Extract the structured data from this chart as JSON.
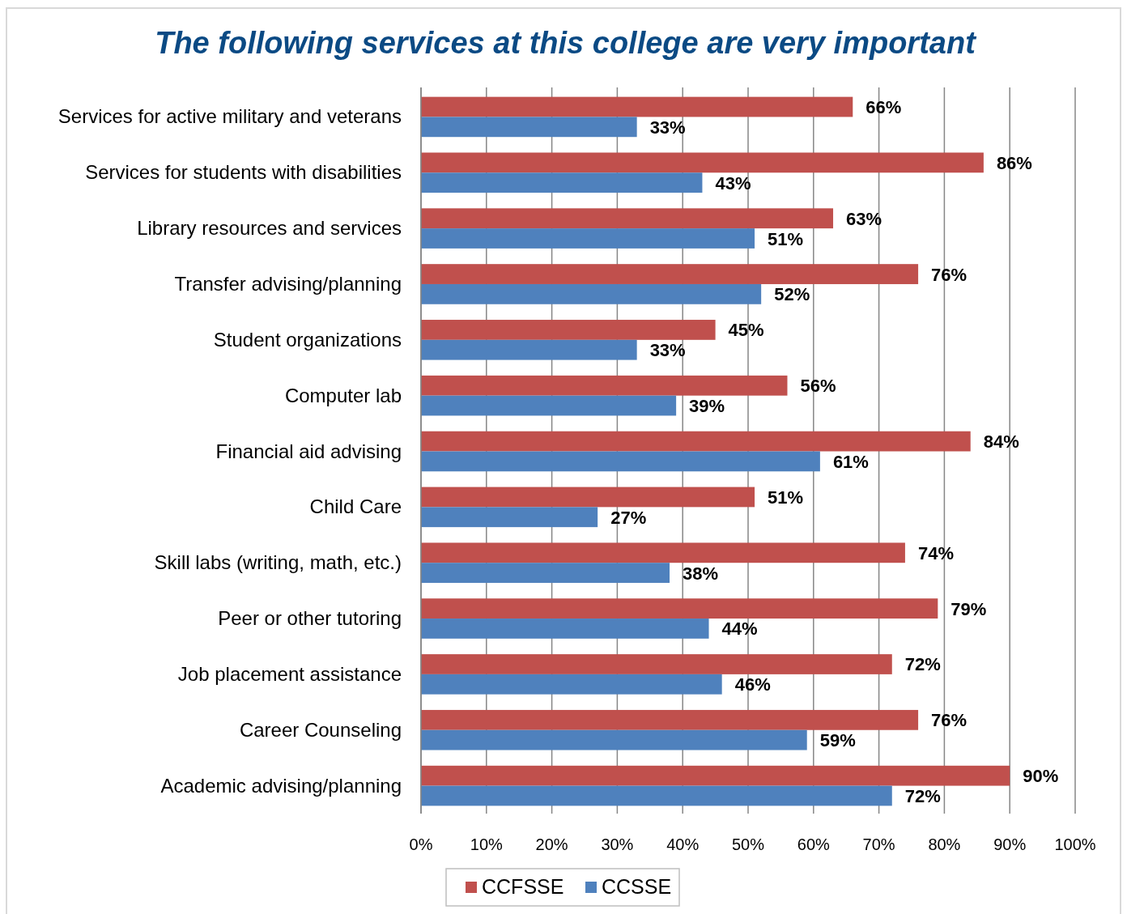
{
  "chart_data": {
    "type": "bar",
    "orientation": "horizontal",
    "title": "The following services at this college are very important",
    "categories": [
      "Services for active military and veterans",
      "Services for students with disabilities",
      "Library resources and services",
      "Transfer advising/planning",
      "Student organizations",
      "Computer lab",
      "Financial aid advising",
      "Child Care",
      "Skill labs (writing, math, etc.)",
      "Peer or other tutoring",
      "Job placement assistance",
      "Career Counseling",
      "Academic advising/planning"
    ],
    "series": [
      {
        "name": "CCFSSE",
        "color": "#c0504d",
        "values": [
          66,
          86,
          63,
          76,
          45,
          56,
          84,
          51,
          74,
          79,
          72,
          76,
          90
        ],
        "value_labels": [
          "66%",
          "86%",
          "63%",
          "76%",
          "45%",
          "56%",
          "84%",
          "51%",
          "74%",
          "79%",
          "72%",
          "76%",
          "90%"
        ]
      },
      {
        "name": "CCSSE",
        "color": "#4f81bd",
        "values": [
          33,
          43,
          51,
          52,
          33,
          39,
          61,
          27,
          38,
          44,
          46,
          59,
          72
        ],
        "value_labels": [
          "33%",
          "43%",
          "51%",
          "52%",
          "33%",
          "39%",
          "61%",
          "27%",
          "38%",
          "44%",
          "46%",
          "59%",
          "72%"
        ]
      }
    ],
    "xlim": [
      0,
      100
    ],
    "xticks": [
      {
        "value": 0,
        "label": "0%"
      },
      {
        "value": 10,
        "label": "10%"
      },
      {
        "value": 20,
        "label": "20%"
      },
      {
        "value": 30,
        "label": "30%"
      },
      {
        "value": 40,
        "label": "40%"
      },
      {
        "value": 50,
        "label": "50%"
      },
      {
        "value": 60,
        "label": "60%"
      },
      {
        "value": 70,
        "label": "70%"
      },
      {
        "value": 80,
        "label": "80%"
      },
      {
        "value": 90,
        "label": "90%"
      },
      {
        "value": 100,
        "label": "100%"
      }
    ],
    "grid": "x",
    "legend": "bottom"
  }
}
